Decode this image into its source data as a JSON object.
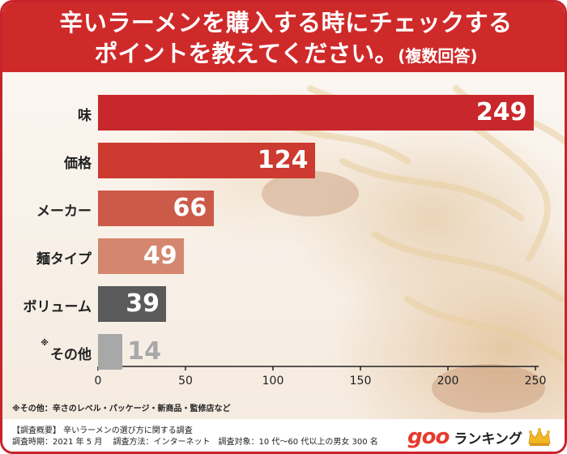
{
  "title": {
    "line1": "辛いラーメンを購入する時にチェックする",
    "line2_main": "ポイントを教えてください。",
    "line2_suffix": "(複数回答)"
  },
  "chart_data": {
    "type": "bar",
    "orientation": "horizontal",
    "categories": [
      "味",
      "価格",
      "メーカー",
      "麺タイプ",
      "ボリューム",
      "その他"
    ],
    "values": [
      249,
      124,
      66,
      49,
      39,
      14
    ],
    "category_marks": [
      "",
      "",
      "",
      "",
      "",
      "※"
    ],
    "bar_colors": [
      "#c8282b",
      "#cc3a30",
      "#cc5a48",
      "#d4876e",
      "#5a5a5a",
      "#a8a8a8"
    ],
    "value_colors": [
      "#ffffff",
      "#ffffff",
      "#ffffff",
      "#ffffff",
      "#ffffff",
      "#a8a8a8"
    ],
    "x_ticks": [
      "0",
      "50",
      "100",
      "150",
      "200",
      "250"
    ],
    "x_tick_values": [
      0,
      50,
      100,
      150,
      200,
      250
    ],
    "xlim": [
      0,
      250
    ],
    "grid": false
  },
  "footnote": "※その他：辛さのレベル・パッケージ・新商品・監修店など",
  "survey": {
    "line1": "【調査概要】 辛いラーメンの選び方に関する調査",
    "line2": "調査時期：2021 年 5 月　 調査方法：インターネット　調査対象：10 代～60 代以上の男女 300 名"
  },
  "logo": {
    "goo": "goo",
    "ranking": "ランキング",
    "crown_icon": "crown-icon",
    "accent": "#e63b2e"
  }
}
